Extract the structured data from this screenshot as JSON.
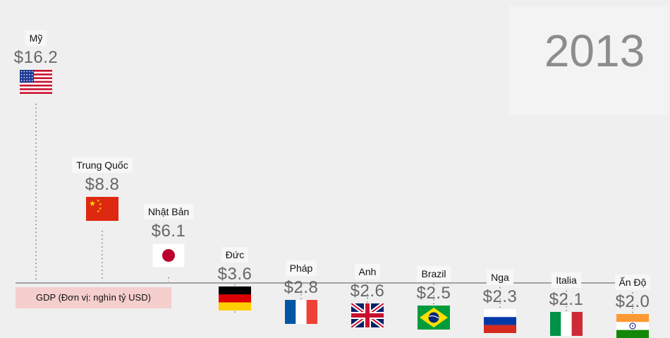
{
  "year_label": "2013",
  "legend_label": "GDP (Đơn vị: nghìn tỷ USD)",
  "chart_data": {
    "type": "bar",
    "title": "2013",
    "categories": [
      "Mỹ",
      "Trung Quốc",
      "Nhật Bản",
      "Đức",
      "Pháp",
      "Anh",
      "Brazil",
      "Nga",
      "Italia",
      "Ấn Độ"
    ],
    "value_labels": [
      "$16.2",
      "$8.8",
      "$6.1",
      "$3.6",
      "$2.8",
      "$2.6",
      "$2.5",
      "$2.3",
      "$2.1",
      "$2.0"
    ],
    "values": [
      16.2,
      8.8,
      6.1,
      3.6,
      2.8,
      2.6,
      2.5,
      2.3,
      2.1,
      2.0
    ],
    "flag_icons": [
      "usa-flag-icon",
      "china-flag-icon",
      "japan-flag-icon",
      "germany-flag-icon",
      "france-flag-icon",
      "uk-flag-icon",
      "brazil-flag-icon",
      "russia-flag-icon",
      "italy-flag-icon",
      "india-flag-icon"
    ],
    "ylabel": "GDP (Đơn vị: nghìn tỷ USD)",
    "grid": false,
    "legend": "bottom-left"
  }
}
